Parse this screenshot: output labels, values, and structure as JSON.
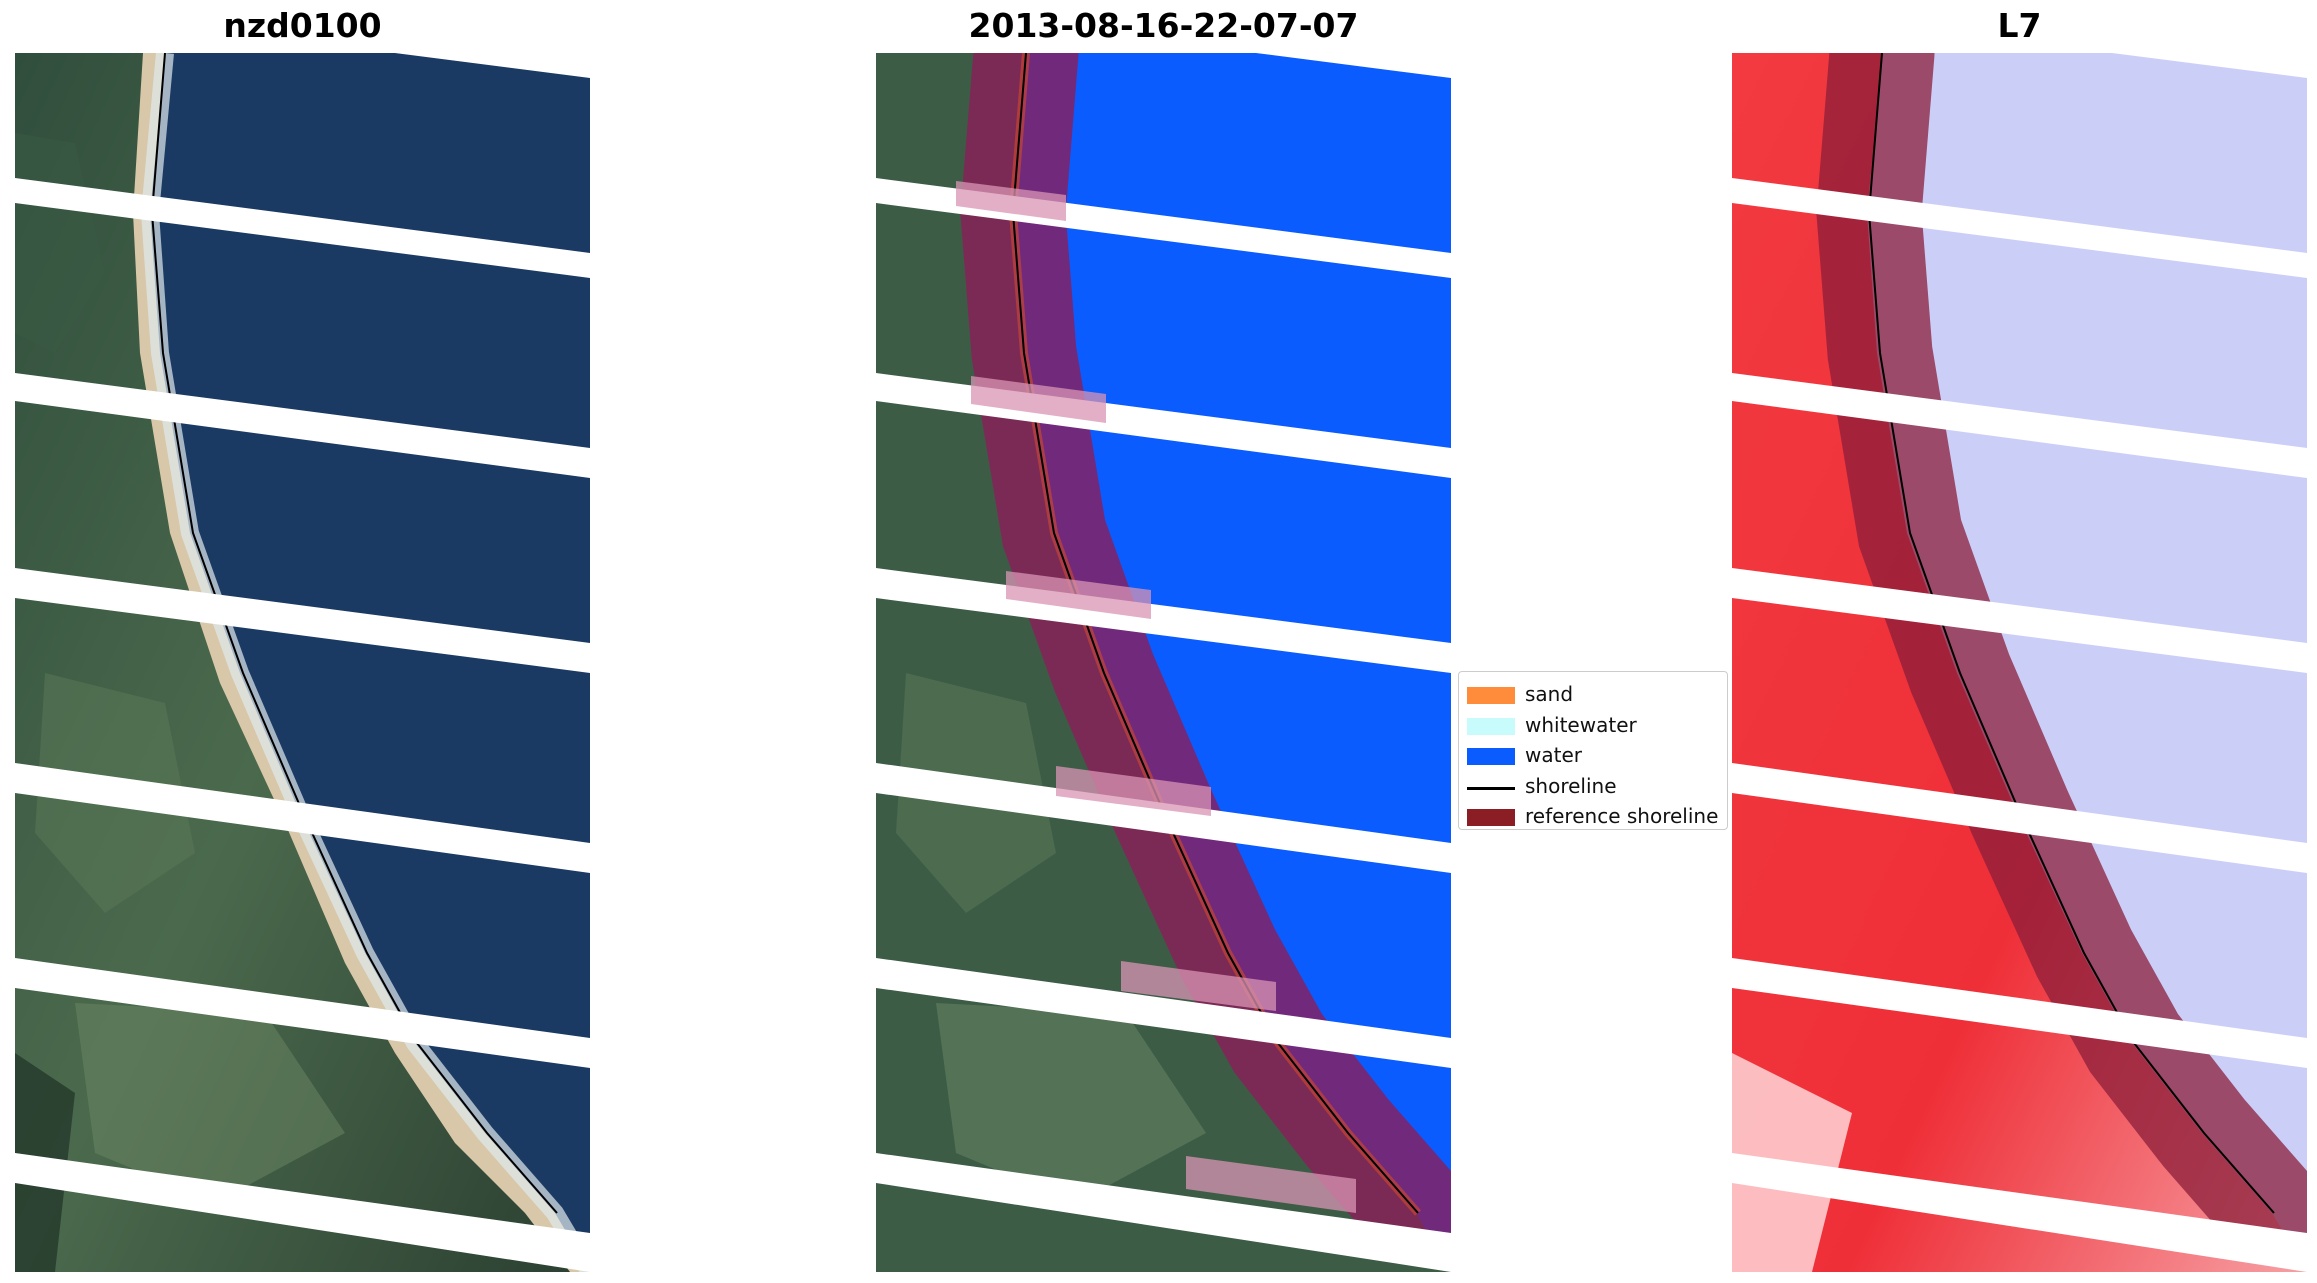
{
  "panels": [
    {
      "title": "nzd0100"
    },
    {
      "title": "2013-08-16-22-07-07"
    },
    {
      "title": "L7"
    }
  ],
  "legend": {
    "items": [
      {
        "label": "sand",
        "color": "#ff8c3a",
        "kind": "patch"
      },
      {
        "label": "whitewater",
        "color": "#c8fbfb",
        "kind": "patch"
      },
      {
        "label": "water",
        "color": "#0a5cff",
        "kind": "patch"
      },
      {
        "label": "shoreline",
        "color": "#000000",
        "kind": "line"
      },
      {
        "label": "reference shoreline",
        "color": "#8b1e24",
        "kind": "patch"
      }
    ]
  },
  "colors": {
    "ocean": "#1b3a63",
    "land_dark": "#2a4534",
    "land_mid": "#4d6a4e",
    "beach": "#d8c7a8",
    "surf": "#dfe9ee",
    "classified_water": "#0a5cff",
    "buffer_overlay": "#8b1e3a",
    "mndwi_land": "#f2343c",
    "mndwi_water": "#c9cdf8",
    "gap_stripe": "#ffffff"
  }
}
